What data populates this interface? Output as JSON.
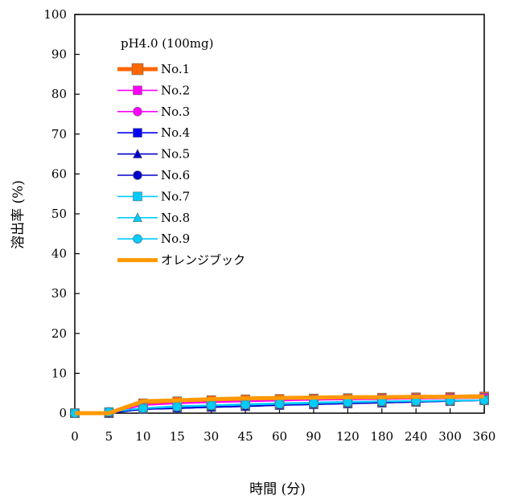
{
  "chart_data": {
    "type": "line",
    "title": "",
    "xlabel": "時間 (分)",
    "ylabel": "溶出率 (%)",
    "x": [
      "0",
      "5",
      "10",
      "15",
      "30",
      "45",
      "60",
      "90",
      "120",
      "180",
      "240",
      "300",
      "360"
    ],
    "ylim": [
      0,
      100
    ],
    "yticks": [
      "0",
      "10",
      "20",
      "30",
      "40",
      "50",
      "60",
      "70",
      "80",
      "90",
      "100"
    ],
    "grid": false,
    "legend_position": "top-left",
    "legend_title": "pH4.0 (100mg)",
    "series": [
      {
        "name": "No.1",
        "color": "#FF6600",
        "marker": "square",
        "thick": true,
        "values": [
          0,
          0,
          2.5,
          3.0,
          3.3,
          3.5,
          3.6,
          3.7,
          3.8,
          3.9,
          4.0,
          4.1,
          4.2
        ]
      },
      {
        "name": "No.2",
        "color": "#FF00FF",
        "marker": "square",
        "values": [
          0,
          0,
          2.0,
          2.5,
          2.8,
          3.0,
          3.2,
          3.4,
          3.5,
          3.6,
          3.7,
          3.8,
          3.9
        ]
      },
      {
        "name": "No.3",
        "color": "#FF00FF",
        "marker": "circle",
        "values": [
          0,
          0,
          2.0,
          2.4,
          2.7,
          2.9,
          3.1,
          3.3,
          3.4,
          3.5,
          3.6,
          3.7,
          3.8
        ]
      },
      {
        "name": "No.4",
        "color": "#0000FF",
        "marker": "square",
        "values": [
          0,
          0,
          1.0,
          1.2,
          1.5,
          1.7,
          2.0,
          2.2,
          2.4,
          2.6,
          2.8,
          3.0,
          3.2
        ]
      },
      {
        "name": "No.5",
        "color": "#0000CC",
        "marker": "triangle",
        "values": [
          0,
          0,
          1.0,
          1.3,
          1.6,
          1.8,
          2.1,
          2.3,
          2.5,
          2.7,
          2.9,
          3.1,
          3.3
        ]
      },
      {
        "name": "No.6",
        "color": "#0000CC",
        "marker": "circle",
        "values": [
          0,
          0,
          1.0,
          1.2,
          1.5,
          1.7,
          2.0,
          2.2,
          2.4,
          2.6,
          2.8,
          3.0,
          3.2
        ]
      },
      {
        "name": "No.7",
        "color": "#00CCFF",
        "marker": "square",
        "values": [
          0,
          0.3,
          1.3,
          1.8,
          2.0,
          2.3,
          2.5,
          2.7,
          2.9,
          3.0,
          3.1,
          3.2,
          3.3
        ]
      },
      {
        "name": "No.8",
        "color": "#00CCFF",
        "marker": "triangle",
        "values": [
          0,
          0.3,
          1.2,
          1.6,
          1.9,
          2.1,
          2.3,
          2.5,
          2.7,
          2.9,
          3.0,
          3.1,
          3.2
        ]
      },
      {
        "name": "No.9",
        "color": "#00CCFF",
        "marker": "circle",
        "values": [
          0,
          0.3,
          1.2,
          1.6,
          1.9,
          2.1,
          2.3,
          2.5,
          2.7,
          2.9,
          3.0,
          3.1,
          3.2
        ]
      },
      {
        "name": "オレンジブック",
        "color": "#FF9900",
        "marker": "none",
        "thick": true,
        "values": [
          0,
          0,
          3.0,
          3.2,
          3.5,
          3.7,
          3.8,
          3.9,
          4.0,
          4.0,
          4.1,
          4.1,
          4.2
        ]
      }
    ]
  }
}
